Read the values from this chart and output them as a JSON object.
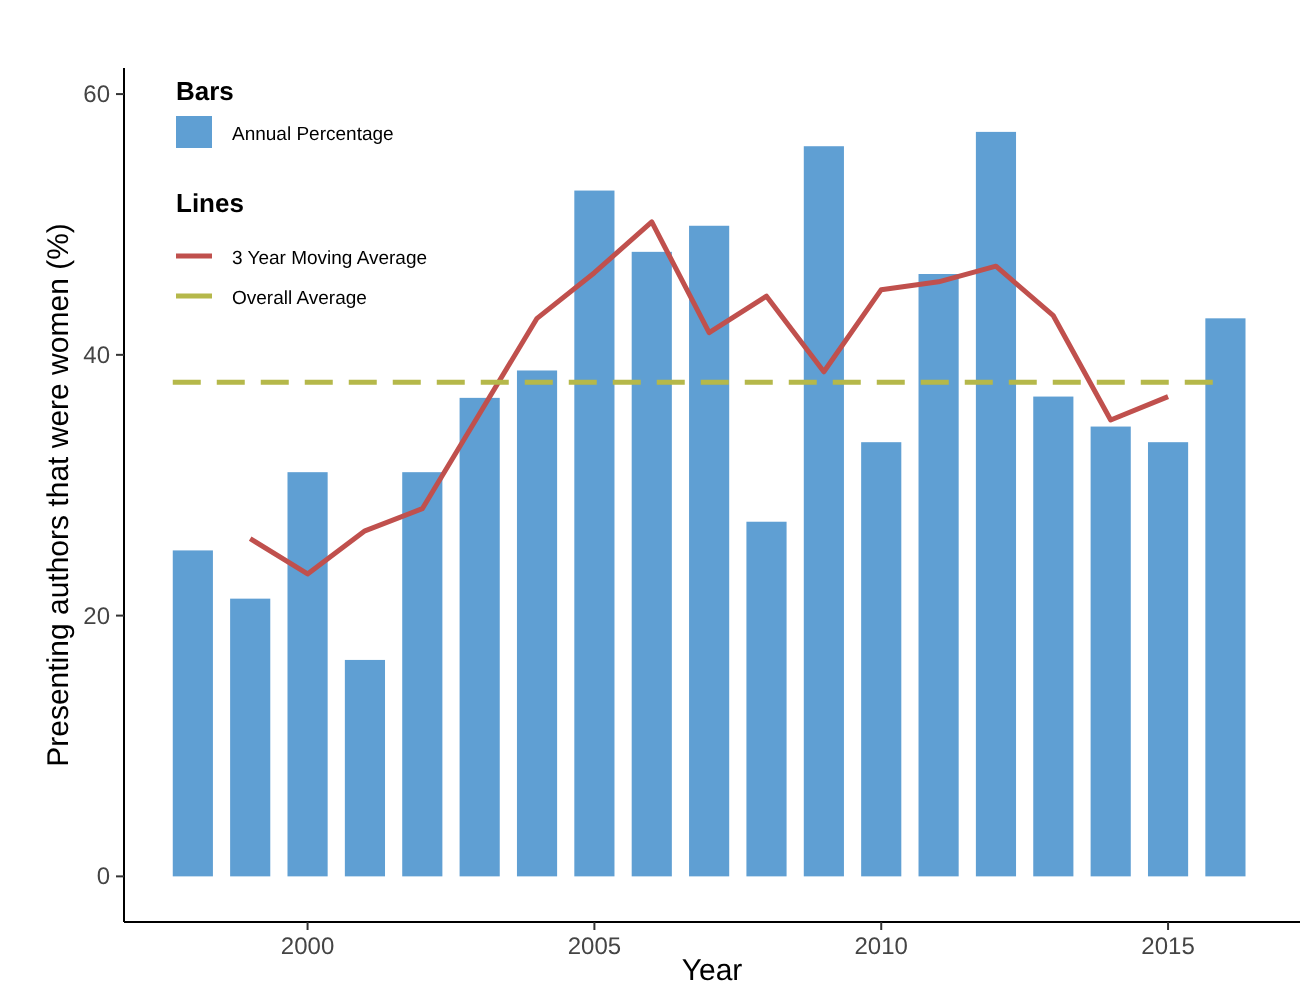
{
  "chart_data": {
    "type": "bar",
    "xlabel": "Year",
    "ylabel": "Presenting authors that were women (%)",
    "legend_title": "Bars",
    "annotations": [
      "Lines"
    ],
    "x": [
      1998,
      1999,
      2000,
      2001,
      2002,
      2003,
      2004,
      2005,
      2006,
      2007,
      2008,
      2009,
      2010,
      2011,
      2012,
      2013,
      2014,
      2015,
      2016
    ],
    "series": [
      {
        "name": "Annual Percentage",
        "color": "#5f9fd3",
        "values": [
          25,
          21.3,
          31,
          16.6,
          31,
          36.7,
          38.8,
          52.6,
          47.9,
          49.9,
          27.2,
          56,
          33.3,
          46.2,
          57.1,
          36.8,
          34.5,
          33.3,
          42.8
        ]
      },
      {
        "name": "3 Year Moving Average",
        "type": "line",
        "color": "#c0504d",
        "x": [
          1999,
          2000,
          2001,
          2002,
          2003,
          2004,
          2005,
          2006,
          2007,
          2008,
          2009,
          2010,
          2011,
          2012,
          2013,
          2014,
          2015
        ],
        "values": [
          25.9,
          23.2,
          26.5,
          28.2,
          35.5,
          42.8,
          46.3,
          50.2,
          41.7,
          44.5,
          38.7,
          45,
          45.6,
          46.8,
          43,
          35,
          36.8
        ]
      }
    ],
    "ref_lines": [
      {
        "axis": "y",
        "value": 37.9,
        "label": "Overall Average",
        "color": "#b5b84a",
        "line_style": "dashed"
      }
    ],
    "xlim": [
      1996.8,
      2017.3
    ],
    "xticks": [
      2000,
      2005,
      2010,
      2015
    ],
    "ylim": [
      -3.5,
      62
    ],
    "yticks": [
      0,
      20,
      40,
      60
    ],
    "grid": false,
    "legend": "top left",
    "line_style": "solid",
    "marker": "none"
  }
}
